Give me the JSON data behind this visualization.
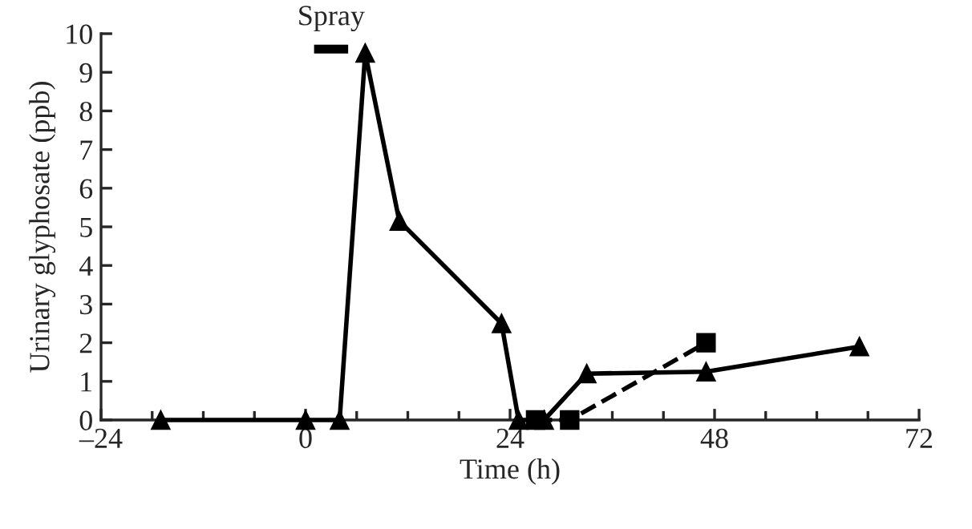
{
  "chart_data": {
    "type": "line",
    "xlabel": "Time (h)",
    "ylabel": "Urinary glyphosate (ppb)",
    "xlim": [
      -24,
      72
    ],
    "xticks": [
      {
        "value": -24,
        "label": "–24"
      },
      0,
      24,
      48,
      72
    ],
    "ylim": [
      0,
      10
    ],
    "yticks": [
      0,
      1,
      2,
      3,
      4,
      5,
      6,
      7,
      8,
      9,
      10
    ],
    "grid": false,
    "legend": false,
    "series": [
      {
        "name": "Spray",
        "color": "#000000",
        "marker": "none",
        "line_style": "solid",
        "x": [
          1,
          5
        ],
        "values": [
          9.6,
          9.6
        ]
      },
      {
        "color": "#000000",
        "marker": "triangle",
        "line_style": "solid",
        "x": [
          -17,
          0,
          4,
          7,
          11,
          23,
          25,
          28,
          33,
          47,
          65
        ],
        "values": [
          0,
          0,
          0,
          9.5,
          5.15,
          2.5,
          0,
          0,
          1.2,
          1.25,
          1.9
        ]
      },
      {
        "color": "#000000",
        "marker": "square",
        "line_style": "dashed",
        "x": [
          27,
          31,
          47
        ],
        "values": [
          0,
          0,
          2.0
        ]
      }
    ]
  }
}
